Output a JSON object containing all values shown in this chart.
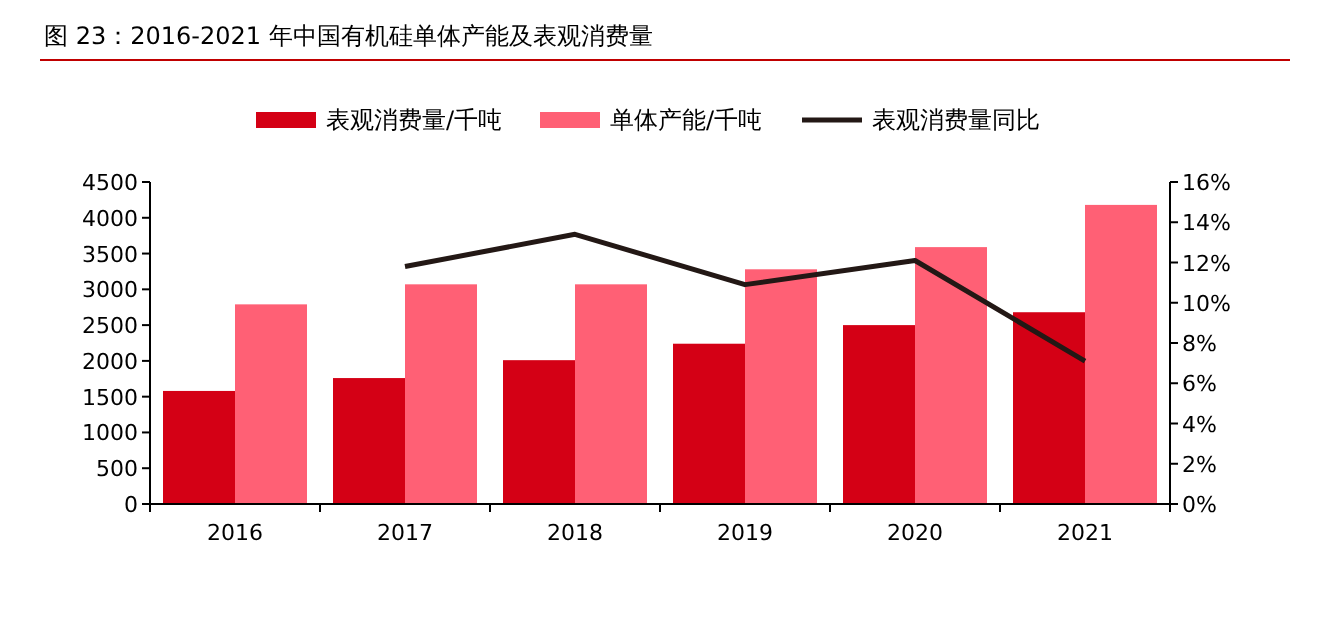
{
  "chart_data": {
    "type": "bar",
    "title": "图 23：2016-2021 年中国有机硅单体产能及表观消费量",
    "categories": [
      "2016",
      "2017",
      "2018",
      "2019",
      "2020",
      "2021"
    ],
    "series": [
      {
        "name": "表观消费量/千吨",
        "color": "#d40015",
        "values": [
          1580,
          1760,
          2010,
          2240,
          2500,
          2680
        ]
      },
      {
        "name": "单体产能/千吨",
        "color": "#ff6075",
        "values": [
          2790,
          3070,
          3070,
          3280,
          3590,
          4180
        ]
      },
      {
        "name": "表观消费量同比",
        "type": "line",
        "axis": "y2",
        "color": "#231815",
        "values": [
          null,
          11.8,
          13.4,
          10.9,
          12.1,
          7.1
        ]
      }
    ],
    "ylim": [
      0,
      4500
    ],
    "yticks": [
      0,
      500,
      1000,
      1500,
      2000,
      2500,
      3000,
      3500,
      4000,
      4500
    ],
    "y2lim": [
      0,
      16
    ],
    "y2ticks": [
      {
        "value": 0,
        "label": "0%"
      },
      {
        "value": 2,
        "label": "2%"
      },
      {
        "value": 4,
        "label": "4%"
      },
      {
        "value": 6,
        "label": "6%"
      },
      {
        "value": 8,
        "label": "8%"
      },
      {
        "value": 10,
        "label": "10%"
      },
      {
        "value": 12,
        "label": "12%"
      },
      {
        "value": 14,
        "label": "14%"
      },
      {
        "value": 16,
        "label": "16%"
      }
    ],
    "legend": "top",
    "grid": false
  }
}
